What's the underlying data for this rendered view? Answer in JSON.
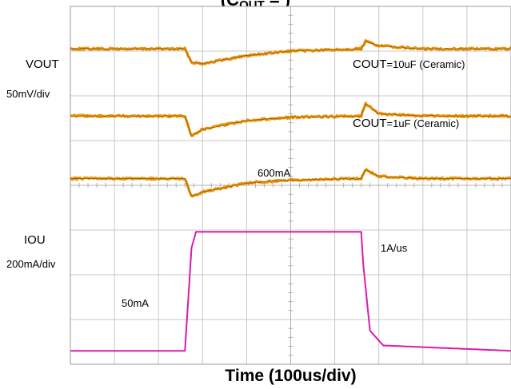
{
  "chart_data": {
    "type": "line",
    "title": {
      "prefix": "(",
      "symbol": "C",
      "subscript": "OUT",
      "suffix": " =  )"
    },
    "xlabel": "Time (100us/div)",
    "vout_label": {
      "main": "V",
      "sub": "OUT"
    },
    "vout_scale": "50mV/div",
    "iout_label": {
      "main": "I",
      "sub": "OU"
    },
    "iout_scale": "200mA/div",
    "annotations": {
      "cout_10": {
        "main": "C",
        "sub": "OUT",
        "rest": "=10uF (Ceramic)"
      },
      "cout_1": {
        "main": "C",
        "sub": "OUT",
        "rest": "=1uF (Ceramic)"
      },
      "load_high": "600mA",
      "slew": "1A/us",
      "load_low": "50mA"
    },
    "x_divisions": 10,
    "y_divisions": 8,
    "grid": true,
    "load_step": {
      "low_mA": 50,
      "high_mA": 600,
      "rise_div": 2.65,
      "fall_div": 6.6
    },
    "series": [
      {
        "color": "#f0960a",
        "x_div": [
          0,
          2.6,
          2.75,
          3.0,
          4.0,
          5.0,
          6.6,
          6.7,
          7.0,
          8.0,
          10
        ],
        "y_div": [
          7.05,
          7.05,
          6.75,
          6.72,
          6.9,
          7.0,
          7.05,
          7.22,
          7.12,
          7.05,
          7.05
        ]
      },
      {
        "color": "#f0960a",
        "x_div": [
          0,
          2.6,
          2.75,
          3.0,
          4.0,
          5.0,
          6.6,
          6.7,
          7.0,
          8.0,
          10
        ],
        "y_div": [
          5.55,
          5.55,
          5.1,
          5.25,
          5.45,
          5.52,
          5.55,
          5.82,
          5.6,
          5.55,
          5.55
        ]
      },
      {
        "color": "#f0960a",
        "x_div": [
          0,
          2.6,
          2.75,
          3.0,
          4.0,
          5.0,
          6.6,
          6.7,
          7.0,
          8.0,
          10
        ],
        "y_div": [
          4.15,
          4.15,
          3.75,
          3.85,
          4.05,
          4.12,
          4.15,
          4.35,
          4.2,
          4.15,
          4.15
        ]
      },
      {
        "color": "#d81bb0",
        "x_div": [
          0,
          2.6,
          2.75,
          2.85,
          6.6,
          6.65,
          6.8,
          7.1,
          10
        ],
        "y_div": [
          0.3,
          0.3,
          2.6,
          2.96,
          2.96,
          2.2,
          0.75,
          0.42,
          0.3
        ]
      }
    ]
  }
}
